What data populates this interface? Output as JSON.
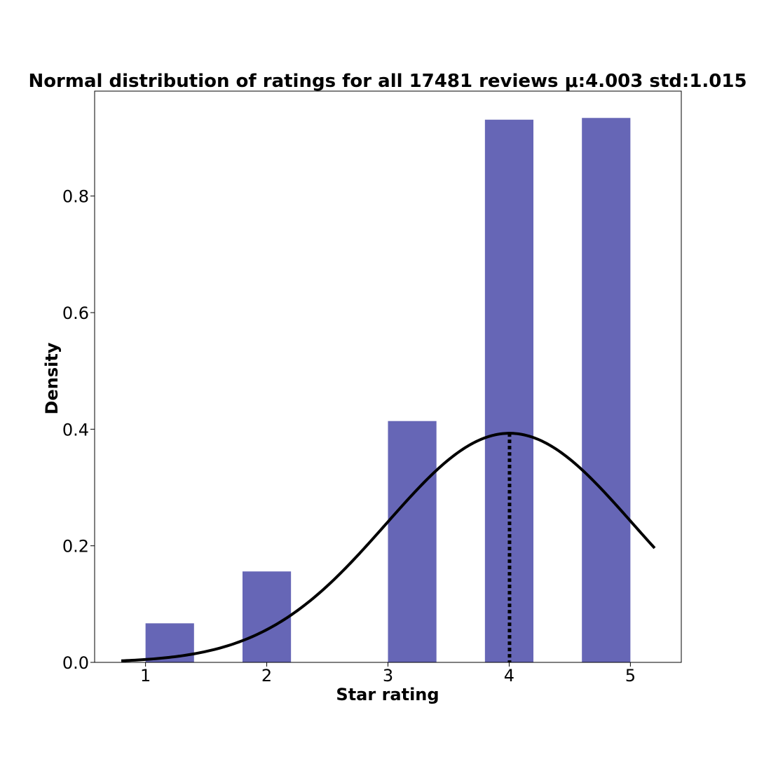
{
  "chart_data": {
    "type": "bar",
    "title": "Normal distribution of ratings for all 17481 reviews μ:4.003 std:1.015",
    "xlabel": "Star rating",
    "ylabel": "Density",
    "xlim": [
      0.58,
      5.42
    ],
    "ylim": [
      0,
      0.98
    ],
    "xticks": [
      1,
      2,
      3,
      4,
      5
    ],
    "yticks": [
      0.0,
      0.2,
      0.4,
      0.6,
      0.8
    ],
    "bar_color": "#6666b6",
    "bars": [
      {
        "x0": 1.0,
        "x1": 1.4,
        "value": 0.067
      },
      {
        "x0": 1.8,
        "x1": 2.2,
        "value": 0.156
      },
      {
        "x0": 3.0,
        "x1": 3.4,
        "value": 0.414
      },
      {
        "x0": 3.8,
        "x1": 4.2,
        "value": 0.931
      },
      {
        "x0": 4.6,
        "x1": 5.0,
        "value": 0.934
      }
    ],
    "curve": {
      "type": "normal-pdf",
      "mean": 4.003,
      "std": 1.015,
      "x_range": [
        0.8,
        5.2
      ],
      "color": "#000000"
    },
    "mean_line": {
      "x": 4.003,
      "style": "dotted",
      "color": "#000000"
    },
    "grid": false,
    "legend": false
  }
}
